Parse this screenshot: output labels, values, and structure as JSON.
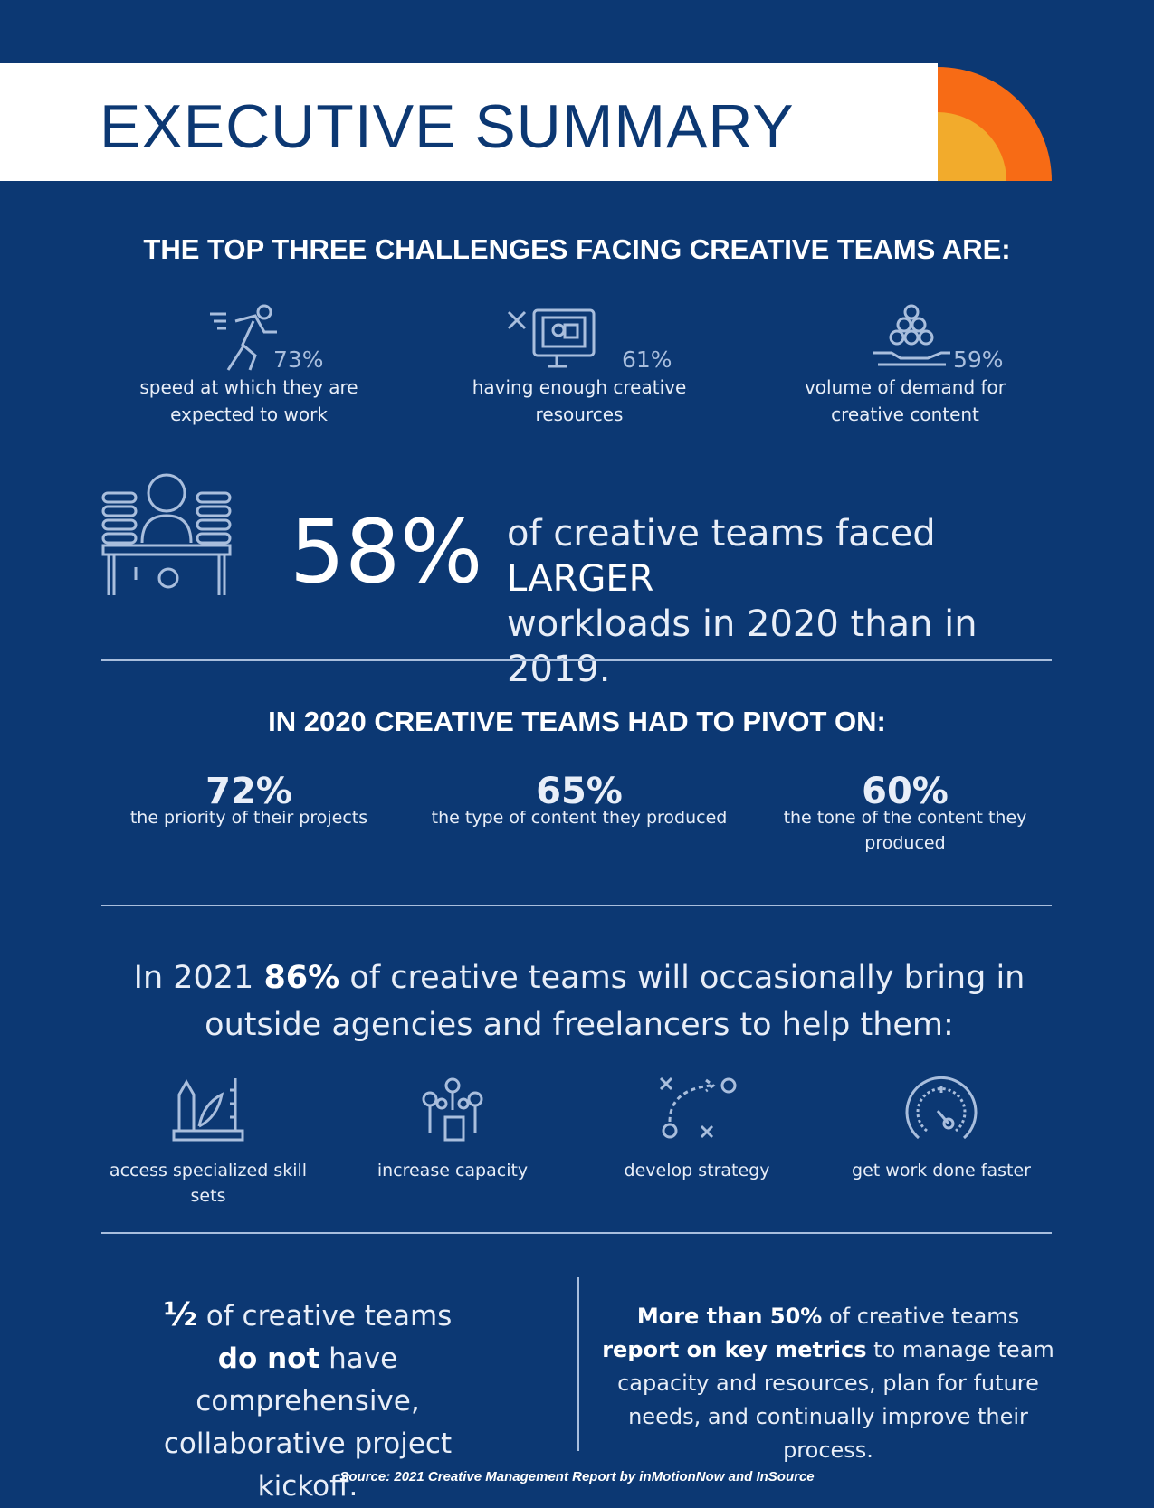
{
  "title": "EXECUTIVE SUMMARY",
  "challenges": {
    "heading": "THE TOP THREE CHALLENGES FACING CREATIVE TEAMS ARE:",
    "items": [
      {
        "icon": "running-person-icon",
        "pct": "73%",
        "label": "speed at which they are expected to work"
      },
      {
        "icon": "monitor-icon",
        "pct": "61%",
        "label": "having enough creative resources"
      },
      {
        "icon": "hand-with-balls-icon",
        "pct": "59%",
        "label": "volume of demand for creative content"
      }
    ]
  },
  "workload": {
    "icon": "person-at-desk-icon",
    "pct": "58%",
    "text1": "of creative teams faced ",
    "emph": "LARGER",
    "text2": "workloads in 2020 than in 2019."
  },
  "pivot": {
    "heading": "IN 2020 CREATIVE TEAMS HAD TO PIVOT ON:",
    "items": [
      {
        "pct": "72%",
        "label": "the priority of their projects"
      },
      {
        "pct": "65%",
        "label": "the type of content they produced"
      },
      {
        "pct": "60%",
        "label": "the tone of the content they produced"
      }
    ]
  },
  "outside": {
    "pre": "In 2021 ",
    "emph": "86%",
    "post": " of creative teams will occasionally bring in outside agencies and freelancers to help them:",
    "items": [
      {
        "icon": "design-tools-icon",
        "label": "access specialized skill sets"
      },
      {
        "icon": "hand-network-icon",
        "label": "increase capacity"
      },
      {
        "icon": "strategy-icon",
        "label": "develop strategy"
      },
      {
        "icon": "speedometer-icon",
        "label": "get work done faster"
      }
    ]
  },
  "kickoff": {
    "emph1": "½",
    "t1": " of creative teams",
    "emph2": "do not",
    "t2": " have comprehensive, collaborative project kickoff."
  },
  "metrics": {
    "emph1": "More than 50%",
    "t1": " of creative teams ",
    "emph2": "report on key metrics",
    "t2": " to manage team capacity and resources, plan for future needs, and continually improve their process."
  },
  "source": "Source: 2021 Creative Management Report by inMotionNow and InSource",
  "colors": {
    "background": "#0c3873",
    "accent_orange": "#f76b15",
    "accent_yellow": "#f2ab2c",
    "icon": "#a9bedd"
  }
}
